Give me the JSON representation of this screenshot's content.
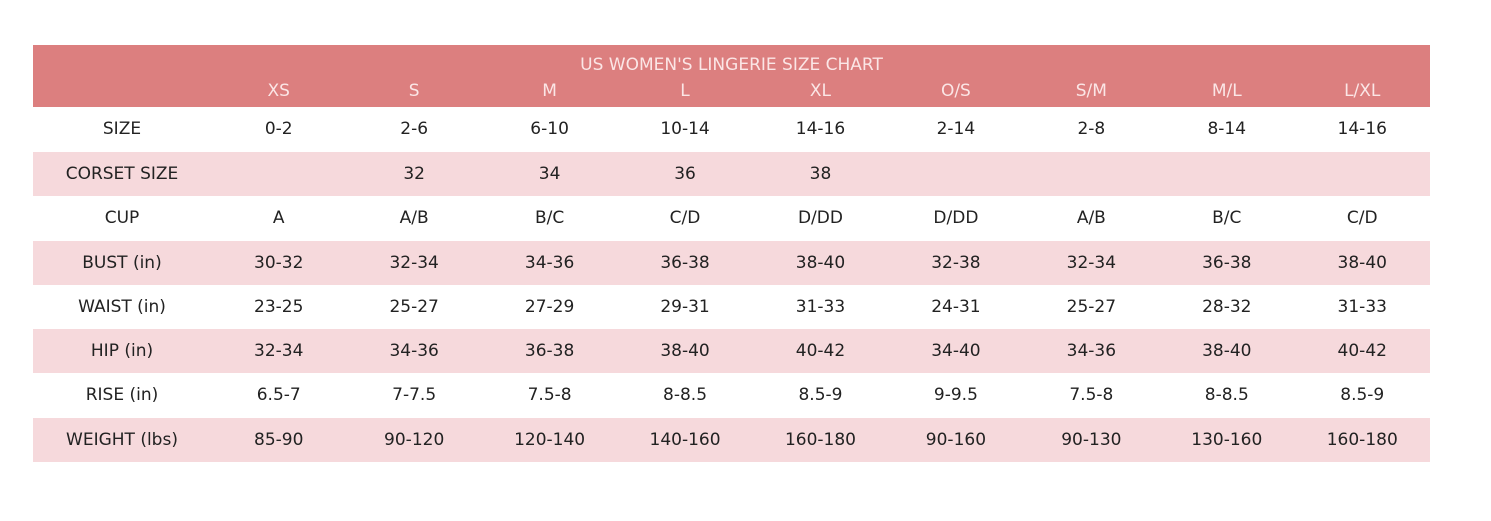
{
  "title": "US WOMEN'S LINGERIE SIZE CHART",
  "sizes": [
    "XS",
    "S",
    "M",
    "L",
    "XL",
    "O/S",
    "S/M",
    "M/L",
    "L/XL"
  ],
  "rows": [
    {
      "label": "SIZE",
      "values": [
        "0-2",
        "2-6",
        "6-10",
        "10-14",
        "14-16",
        "2-14",
        "2-8",
        "8-14",
        "14-16"
      ]
    },
    {
      "label": "CORSET SIZE",
      "values": [
        "",
        "32",
        "34",
        "36",
        "38",
        "",
        "",
        "",
        ""
      ]
    },
    {
      "label": "CUP",
      "values": [
        "A",
        "A/B",
        "B/C",
        "C/D",
        "D/DD",
        "D/DD",
        "A/B",
        "B/C",
        "C/D"
      ]
    },
    {
      "label": "BUST (in)",
      "values": [
        "30-32",
        "32-34",
        "34-36",
        "36-38",
        "38-40",
        "32-38",
        "32-34",
        "36-38",
        "38-40"
      ]
    },
    {
      "label": "WAIST (in)",
      "values": [
        "23-25",
        "25-27",
        "27-29",
        "29-31",
        "31-33",
        "24-31",
        "25-27",
        "28-32",
        "31-33"
      ]
    },
    {
      "label": "HIP (in)",
      "values": [
        "32-34",
        "34-36",
        "36-38",
        "38-40",
        "40-42",
        "34-40",
        "34-36",
        "38-40",
        "40-42"
      ]
    },
    {
      "label": "RISE (in)",
      "values": [
        "6.5-7",
        "7-7.5",
        "7.5-8",
        "8-8.5",
        "8.5-9",
        "9-9.5",
        "7.5-8",
        "8-8.5",
        "8.5-9"
      ]
    },
    {
      "label": "WEIGHT (lbs)",
      "values": [
        "85-90",
        "90-120",
        "120-140",
        "140-160",
        "160-180",
        "90-160",
        "90-130",
        "130-160",
        "160-180"
      ]
    }
  ],
  "colors": {
    "header": "#dc7f7f",
    "header_text": "#fbe6e6",
    "alt_row": "#f6d9dc"
  }
}
